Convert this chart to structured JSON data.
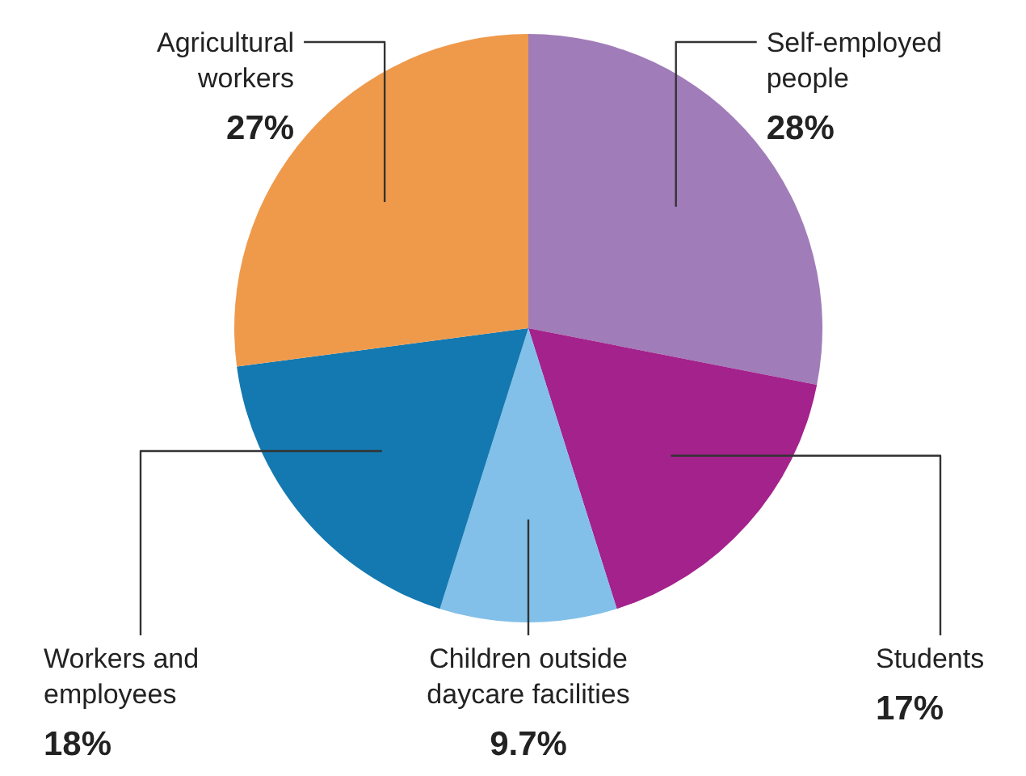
{
  "chart_data": {
    "type": "pie",
    "categories": [
      "Self-employed people",
      "Students",
      "Children outside daycare facilities",
      "Workers and employees",
      "Agricultural workers"
    ],
    "values": [
      28,
      17,
      9.7,
      18,
      27
    ],
    "value_labels": [
      "28%",
      "17%",
      "9.7%",
      "18%",
      "27%"
    ],
    "colors": [
      "#a07cb8",
      "#a3228c",
      "#82c0e9",
      "#1479b0",
      "#ef9a4b"
    ]
  }
}
